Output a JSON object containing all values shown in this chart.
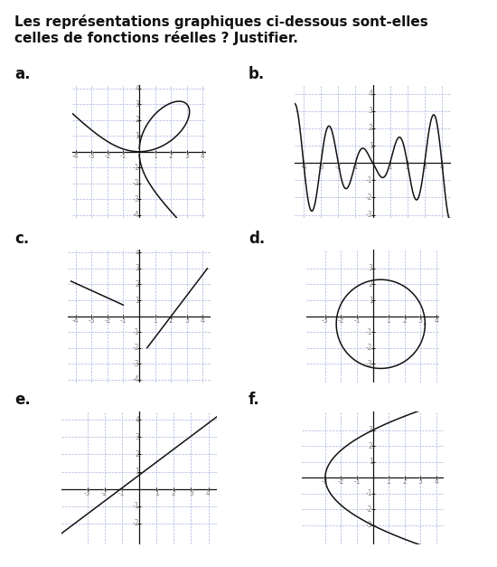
{
  "title_text": "Les représentations graphiques ci-dessous sont-elles\ncelles de fonctions réelles ? Justifier.",
  "title_fontsize": 11,
  "label_fontsize": 12,
  "labels": [
    "a.",
    "b.",
    "c.",
    "d.",
    "e.",
    "f."
  ],
  "grid_color": "#aab4e0",
  "axis_color": "#111111",
  "curve_color": "#111111",
  "background": "#ffffff",
  "tick_label_color": "#888888",
  "tick_label_size": 5.5
}
